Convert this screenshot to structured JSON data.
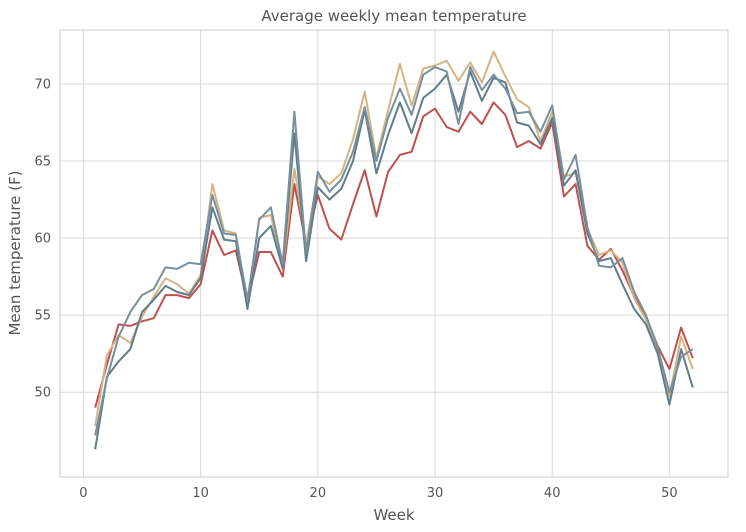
{
  "chart_data": {
    "type": "line",
    "title": "Average weekly mean temperature",
    "xlabel": "Week",
    "ylabel": "Mean temperature (F)",
    "xlim": [
      -2,
      55
    ],
    "ylim": [
      44.5,
      73.5
    ],
    "xticks": [
      0,
      10,
      20,
      30,
      40,
      50
    ],
    "yticks": [
      50,
      55,
      60,
      65,
      70
    ],
    "grid": true,
    "x": [
      1,
      2,
      3,
      4,
      5,
      6,
      7,
      8,
      9,
      10,
      11,
      12,
      13,
      14,
      15,
      16,
      17,
      18,
      19,
      20,
      21,
      22,
      23,
      24,
      25,
      26,
      27,
      28,
      29,
      30,
      31,
      32,
      33,
      34,
      35,
      36,
      37,
      38,
      39,
      40,
      41,
      42,
      43,
      44,
      45,
      46,
      47,
      48,
      49,
      50,
      51,
      52
    ],
    "series": [
      {
        "color": "#c0504d",
        "values": [
          49.0,
          51.8,
          54.4,
          54.3,
          54.6,
          54.8,
          56.3,
          56.3,
          56.1,
          57.0,
          60.5,
          58.9,
          59.2,
          55.9,
          59.1,
          59.1,
          57.5,
          63.5,
          59.6,
          62.8,
          60.6,
          59.9,
          62.2,
          64.4,
          61.4,
          64.3,
          65.4,
          65.6,
          67.9,
          68.4,
          67.2,
          66.9,
          68.2,
          67.4,
          68.8,
          68.0,
          65.9,
          66.3,
          65.8,
          67.5,
          62.7,
          63.5,
          59.5,
          58.6,
          59.3,
          57.9,
          56.2,
          54.9,
          53.0,
          51.5,
          54.2,
          52.2
        ]
      },
      {
        "color": "#d4b484",
        "values": [
          47.8,
          52.4,
          53.7,
          53.2,
          54.9,
          56.2,
          57.4,
          57.0,
          56.4,
          57.6,
          63.5,
          60.5,
          60.3,
          55.6,
          61.3,
          61.5,
          58.0,
          64.5,
          59.6,
          64.0,
          63.5,
          64.2,
          66.4,
          69.5,
          65.2,
          68.3,
          71.3,
          68.6,
          71.0,
          71.2,
          71.5,
          70.2,
          71.4,
          70.1,
          72.1,
          70.5,
          69.0,
          68.5,
          66.3,
          68.2,
          64.0,
          64.2,
          60.6,
          58.9,
          59.2,
          58.4,
          56.1,
          54.7,
          52.5,
          49.7,
          53.6,
          51.5
        ]
      },
      {
        "color": "#607d8b",
        "values": [
          46.3,
          51.0,
          52.0,
          52.8,
          55.2,
          56.0,
          56.9,
          56.5,
          56.3,
          57.4,
          62.0,
          59.9,
          59.8,
          55.4,
          60.0,
          60.8,
          58.0,
          66.8,
          58.5,
          63.3,
          62.5,
          63.2,
          65.0,
          68.3,
          64.2,
          66.7,
          68.8,
          66.8,
          69.1,
          69.7,
          70.6,
          68.2,
          70.8,
          68.9,
          70.4,
          70.1,
          67.5,
          67.3,
          66.1,
          67.8,
          63.4,
          64.4,
          60.3,
          58.5,
          58.7,
          57.0,
          55.4,
          54.4,
          52.5,
          49.2,
          52.8,
          50.3
        ]
      },
      {
        "color": "#78909c",
        "values": [
          47.2,
          50.9,
          53.6,
          55.2,
          56.3,
          56.7,
          58.1,
          58.0,
          58.4,
          58.3,
          62.8,
          60.3,
          60.2,
          56.0,
          61.2,
          62.0,
          58.3,
          68.2,
          59.0,
          64.3,
          63.0,
          63.8,
          65.6,
          68.5,
          65.0,
          67.8,
          69.7,
          68.0,
          70.6,
          71.1,
          70.8,
          67.4,
          71.1,
          69.6,
          70.6,
          69.7,
          68.1,
          68.2,
          66.9,
          68.6,
          63.8,
          65.4,
          60.7,
          58.2,
          58.1,
          58.7,
          56.5,
          55.0,
          52.9,
          50.0,
          52.3,
          52.8
        ]
      }
    ]
  }
}
